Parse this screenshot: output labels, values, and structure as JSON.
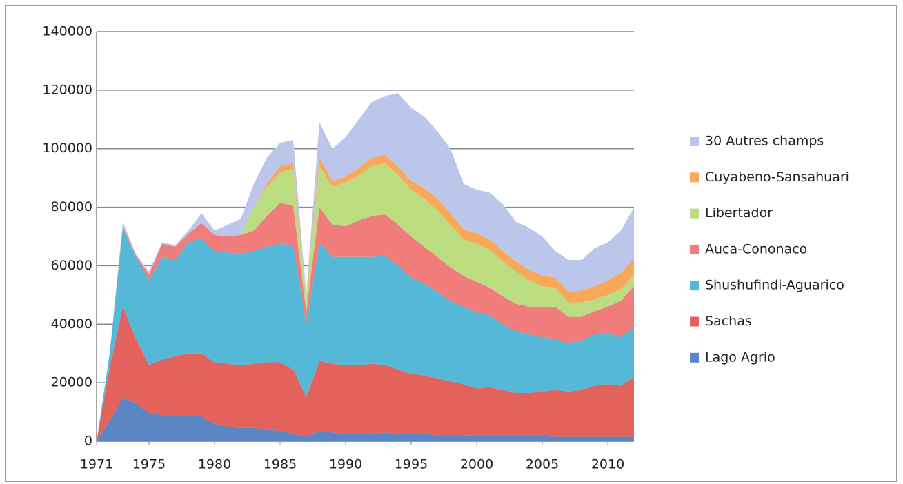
{
  "chart_data": {
    "type": "stacked_area",
    "x": [
      1971,
      1972,
      1973,
      1974,
      1975,
      1976,
      1977,
      1978,
      1979,
      1980,
      1981,
      1982,
      1983,
      1984,
      1985,
      1986,
      1987,
      1988,
      1989,
      1990,
      1991,
      1992,
      1993,
      1994,
      1995,
      1996,
      1997,
      1998,
      1999,
      2000,
      2001,
      2002,
      2003,
      2004,
      2005,
      2006,
      2007,
      2008,
      2009,
      2010,
      2011,
      2012
    ],
    "xlim": [
      1971,
      2012
    ],
    "xticks": [
      1971,
      1975,
      1980,
      1985,
      1990,
      1995,
      2000,
      2005,
      2010
    ],
    "ylim": [
      0,
      140000
    ],
    "yticks": [
      0,
      20000,
      40000,
      60000,
      80000,
      100000,
      120000,
      140000
    ],
    "grid": true,
    "legend": "right",
    "series": [
      {
        "name": "Lago Agrio",
        "color": "#5b86c4",
        "values": [
          0,
          7000,
          15000,
          13000,
          9500,
          9000,
          8500,
          8500,
          8500,
          6000,
          5000,
          4500,
          4500,
          4000,
          3500,
          2500,
          1500,
          3500,
          3000,
          2500,
          2500,
          2500,
          3000,
          2500,
          2500,
          2500,
          2000,
          2000,
          2000,
          1800,
          1800,
          1800,
          1800,
          1800,
          1800,
          1500,
          1500,
          1500,
          1500,
          1500,
          1500,
          1500
        ]
      },
      {
        "name": "Sachas",
        "color": "#e4625c",
        "values": [
          0,
          18000,
          31000,
          22000,
          16500,
          19000,
          20500,
          21500,
          21500,
          21000,
          21500,
          21500,
          22000,
          23000,
          23500,
          22000,
          13500,
          24000,
          23500,
          23500,
          23500,
          24000,
          23000,
          22000,
          20500,
          20000,
          19500,
          18500,
          17500,
          16200,
          16700,
          15700,
          14700,
          14700,
          15200,
          16000,
          15500,
          16000,
          17500,
          18000,
          17500,
          20500
        ]
      },
      {
        "name": "Shushufindi-Aguarico",
        "color": "#55b8d6",
        "values": [
          0,
          5000,
          27000,
          28000,
          29000,
          35000,
          33000,
          38000,
          39500,
          38000,
          38000,
          38000,
          38500,
          39500,
          40500,
          42500,
          25000,
          40500,
          36500,
          37000,
          37000,
          36500,
          37500,
          35500,
          33000,
          31500,
          29500,
          27500,
          26500,
          26000,
          24500,
          22500,
          21000,
          20000,
          18500,
          17500,
          16500,
          17000,
          17500,
          17500,
          16500,
          17000
        ]
      },
      {
        "name": "Auca-Cononaco",
        "color": "#f07c7c",
        "values": [
          0,
          0,
          500,
          500,
          2000,
          4500,
          4500,
          3000,
          5000,
          5500,
          5500,
          6500,
          7000,
          10500,
          14000,
          13500,
          4000,
          12000,
          11000,
          10500,
          12500,
          14000,
          14000,
          14000,
          14000,
          12500,
          12000,
          11500,
          10500,
          10500,
          9500,
          9500,
          9500,
          9500,
          10500,
          11000,
          9000,
          8000,
          8000,
          9000,
          12500,
          14000
        ]
      },
      {
        "name": "Libertador",
        "color": "#bcdc80",
        "values": [
          0,
          0,
          0,
          0,
          0,
          0,
          0,
          0,
          0,
          0,
          0,
          0,
          8000,
          10000,
          10500,
          12500,
          4000,
          14000,
          13000,
          15000,
          15500,
          17000,
          17500,
          17000,
          16000,
          16500,
          16000,
          14500,
          12500,
          13000,
          13000,
          12000,
          11000,
          9000,
          7000,
          6500,
          5000,
          5000,
          4000,
          4000,
          4000,
          4000
        ]
      },
      {
        "name": "Cuyabeno-Sansahuari",
        "color": "#f9a85a",
        "values": [
          0,
          0,
          0,
          0,
          0,
          0,
          0,
          0,
          0,
          0,
          0,
          0,
          0,
          1000,
          2000,
          2000,
          500,
          3000,
          2000,
          2000,
          2500,
          3000,
          3000,
          3000,
          3000,
          3500,
          4000,
          4000,
          3500,
          3500,
          3500,
          3500,
          3500,
          3500,
          3500,
          3500,
          3500,
          4000,
          4500,
          5000,
          5500,
          5500
        ]
      },
      {
        "name": "30 Autres champs",
        "color": "#bcc6ea",
        "values": [
          0,
          0,
          1500,
          500,
          1000,
          500,
          500,
          1000,
          3500,
          1500,
          4000,
          5500,
          8000,
          9000,
          8000,
          8000,
          1500,
          12000,
          11000,
          13500,
          16500,
          19000,
          20000,
          25000,
          25000,
          24500,
          23000,
          22000,
          15500,
          15000,
          16000,
          16000,
          13500,
          14500,
          13500,
          9000,
          11000,
          10500,
          13000,
          13000,
          14500,
          17500
        ]
      }
    ]
  }
}
